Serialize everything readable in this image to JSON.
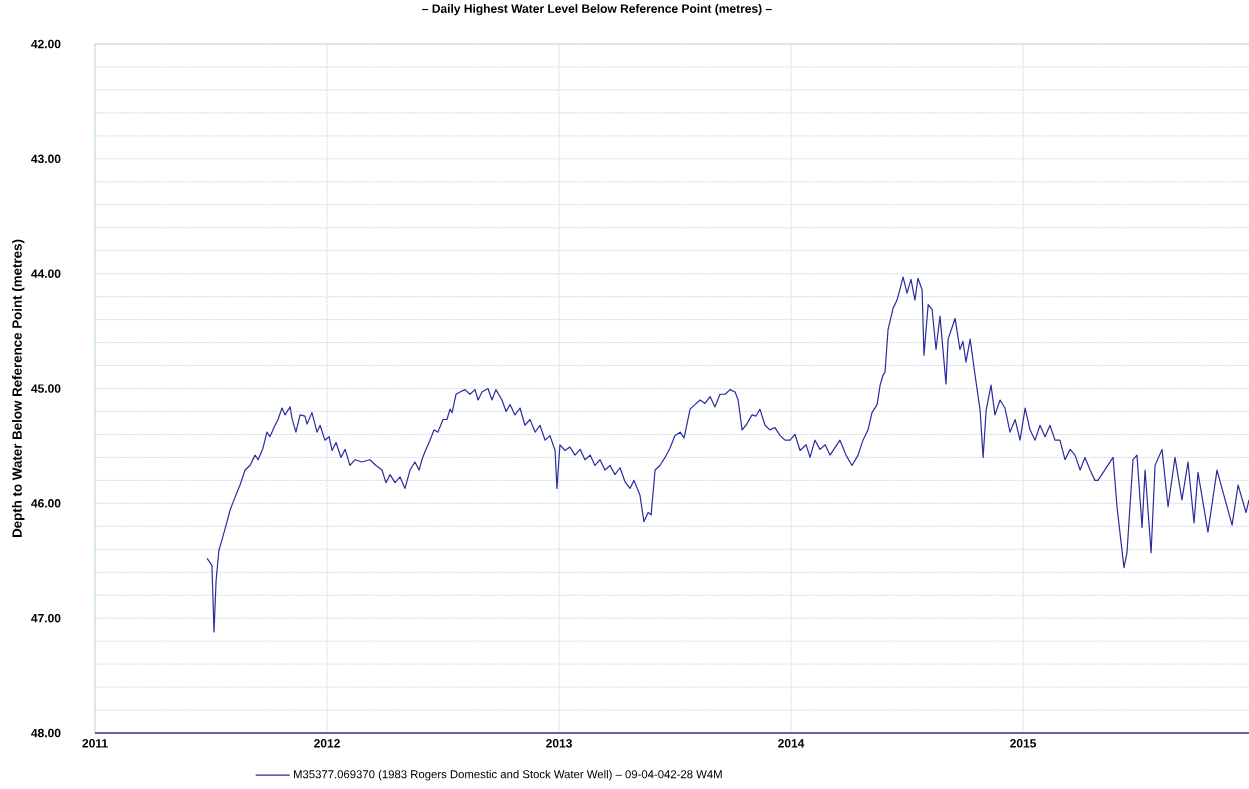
{
  "chart_data": {
    "type": "line",
    "title": "– Daily Highest Water Level Below Reference Point (metres) –",
    "ylabel": "Depth to Water Below Reference Point (metres)",
    "xlim": [
      2011,
      2015.974
    ],
    "xticks": [
      2011,
      2012,
      2013,
      2014,
      2015
    ],
    "ylim": [
      48,
      42
    ],
    "yticks": [
      {
        "value": 42,
        "label": "42.00"
      },
      {
        "value": 42.2,
        "label": null
      },
      {
        "value": 42.4,
        "label": null
      },
      {
        "value": 42.6,
        "label": null
      },
      {
        "value": 42.8,
        "label": null
      },
      {
        "value": 43,
        "label": "43.00"
      },
      {
        "value": 43.2,
        "label": null
      },
      {
        "value": 43.4,
        "label": null
      },
      {
        "value": 43.6,
        "label": null
      },
      {
        "value": 43.8,
        "label": null
      },
      {
        "value": 44,
        "label": "44.00"
      },
      {
        "value": 44.2,
        "label": null
      },
      {
        "value": 44.4,
        "label": null
      },
      {
        "value": 44.6,
        "label": null
      },
      {
        "value": 44.8,
        "label": null
      },
      {
        "value": 45,
        "label": "45.00"
      },
      {
        "value": 45.2,
        "label": null
      },
      {
        "value": 45.4,
        "label": null
      },
      {
        "value": 45.6,
        "label": null
      },
      {
        "value": 45.8,
        "label": null
      },
      {
        "value": 46,
        "label": "46.00"
      },
      {
        "value": 46.2,
        "label": null
      },
      {
        "value": 46.4,
        "label": null
      },
      {
        "value": 46.6,
        "label": null
      },
      {
        "value": 46.8,
        "label": null
      },
      {
        "value": 47,
        "label": "47.00"
      },
      {
        "value": 47.2,
        "label": null
      },
      {
        "value": 47.4,
        "label": null
      },
      {
        "value": 47.6,
        "label": null
      },
      {
        "value": 47.8,
        "label": null
      },
      {
        "value": 48,
        "label": "48.00"
      }
    ],
    "grid": true,
    "legend": "bottom",
    "series": [
      {
        "name": "M35377.069370 (1983 Rogers Domestic and Stock Water Well)  – 09-04-042-28 W4M",
        "color": "#2b2b9c",
        "x": [
          2011.483,
          2011.504,
          2011.513,
          2011.522,
          2011.534,
          2011.547,
          2011.565,
          2011.582,
          2011.599,
          2011.625,
          2011.647,
          2011.668,
          2011.69,
          2011.703,
          2011.724,
          2011.741,
          2011.754,
          2011.776,
          2011.789,
          2011.806,
          2011.819,
          2011.841,
          2011.849,
          2011.866,
          2011.884,
          2011.905,
          2011.914,
          2011.935,
          2011.957,
          2011.97,
          2011.991,
          2012.009,
          2012.022,
          2012.039,
          2012.06,
          2012.078,
          2012.099,
          2012.121,
          2012.151,
          2012.185,
          2012.211,
          2012.237,
          2012.254,
          2012.272,
          2012.293,
          2012.315,
          2012.336,
          2012.358,
          2012.379,
          2012.397,
          2012.409,
          2012.422,
          2012.444,
          2012.461,
          2012.478,
          2012.5,
          2012.517,
          2012.53,
          2012.539,
          2012.556,
          2012.573,
          2012.595,
          2012.616,
          2012.638,
          2012.651,
          2012.668,
          2012.694,
          2012.711,
          2012.728,
          2012.754,
          2012.772,
          2012.789,
          2012.81,
          2012.832,
          2012.853,
          2012.875,
          2012.897,
          2012.918,
          2012.94,
          2012.961,
          2012.983,
          2012.991,
          2013.004,
          2013.026,
          2013.047,
          2013.069,
          2013.091,
          2013.112,
          2013.134,
          2013.155,
          2013.177,
          2013.198,
          2013.22,
          2013.241,
          2013.263,
          2013.284,
          2013.306,
          2013.323,
          2013.349,
          2013.366,
          2013.384,
          2013.397,
          2013.414,
          2013.435,
          2013.457,
          2013.478,
          2013.5,
          2013.522,
          2013.539,
          2013.565,
          2013.586,
          2013.608,
          2013.629,
          2013.651,
          2013.672,
          2013.694,
          2013.716,
          2013.737,
          2013.759,
          2013.772,
          2013.789,
          2013.806,
          2013.832,
          2013.849,
          2013.866,
          2013.888,
          2013.909,
          2013.931,
          2013.953,
          2013.974,
          2013.996,
          2014.017,
          2014.039,
          2014.065,
          2014.082,
          2014.103,
          2014.125,
          2014.147,
          2014.168,
          2014.211,
          2014.237,
          2014.263,
          2014.289,
          2014.31,
          2014.332,
          2014.349,
          2014.371,
          2014.384,
          2014.397,
          2014.405,
          2014.418,
          2014.44,
          2014.457,
          2014.474,
          2014.483,
          2014.5,
          2014.517,
          2014.534,
          2014.547,
          2014.565,
          2014.573,
          2014.591,
          2014.608,
          2014.625,
          2014.642,
          2014.668,
          2014.677,
          2014.707,
          2014.728,
          2014.741,
          2014.754,
          2014.772,
          2014.793,
          2014.815,
          2014.828,
          2014.841,
          2014.862,
          2014.879,
          2014.901,
          2014.922,
          2014.944,
          2014.966,
          2014.987,
          2015.009,
          2015.03,
          2015.052,
          2015.073,
          2015.095,
          2015.116,
          2015.138,
          2015.159,
          2015.181,
          2015.203,
          2015.224,
          2015.246,
          2015.267,
          2015.289,
          2015.31,
          2015.323,
          2015.388,
          2015.405,
          2015.435,
          2015.448,
          2015.474,
          2015.491,
          2015.513,
          2015.526,
          2015.552,
          2015.569,
          2015.599,
          2015.625,
          2015.655,
          2015.685,
          2015.711,
          2015.737,
          2015.754,
          2015.797,
          2015.836,
          2015.901,
          2015.927,
          2015.961,
          2015.974
        ],
        "values": [
          46.48,
          46.54,
          47.12,
          46.67,
          46.41,
          46.32,
          46.19,
          46.06,
          45.97,
          45.84,
          45.71,
          45.67,
          45.58,
          45.62,
          45.52,
          45.38,
          45.42,
          45.32,
          45.27,
          45.17,
          45.23,
          45.16,
          45.26,
          45.38,
          45.23,
          45.24,
          45.31,
          45.21,
          45.38,
          45.32,
          45.45,
          45.42,
          45.54,
          45.47,
          45.6,
          45.53,
          45.67,
          45.62,
          45.64,
          45.62,
          45.67,
          45.71,
          45.82,
          45.75,
          45.82,
          45.77,
          45.87,
          45.71,
          45.64,
          45.71,
          45.62,
          45.55,
          45.45,
          45.36,
          45.38,
          45.27,
          45.27,
          45.18,
          45.21,
          45.05,
          45.03,
          45.01,
          45.05,
          45.01,
          45.1,
          45.03,
          45.0,
          45.1,
          45.01,
          45.1,
          45.2,
          45.14,
          45.23,
          45.17,
          45.32,
          45.27,
          45.38,
          45.32,
          45.45,
          45.41,
          45.54,
          45.87,
          45.49,
          45.54,
          45.51,
          45.58,
          45.53,
          45.62,
          45.58,
          45.67,
          45.62,
          45.71,
          45.67,
          45.75,
          45.69,
          45.81,
          45.87,
          45.8,
          45.93,
          46.16,
          46.08,
          46.1,
          45.71,
          45.67,
          45.6,
          45.52,
          45.41,
          45.38,
          45.43,
          45.18,
          45.14,
          45.1,
          45.13,
          45.07,
          45.16,
          45.05,
          45.05,
          45.01,
          45.03,
          45.1,
          45.36,
          45.32,
          45.23,
          45.24,
          45.18,
          45.32,
          45.36,
          45.34,
          45.41,
          45.45,
          45.45,
          45.4,
          45.54,
          45.49,
          45.6,
          45.45,
          45.53,
          45.49,
          45.58,
          45.45,
          45.58,
          45.67,
          45.58,
          45.45,
          45.36,
          45.21,
          45.14,
          44.97,
          44.88,
          44.86,
          44.49,
          44.3,
          44.23,
          44.1,
          44.03,
          44.17,
          44.05,
          44.23,
          44.04,
          44.14,
          44.71,
          44.27,
          44.31,
          44.66,
          44.37,
          44.96,
          44.57,
          44.39,
          44.66,
          44.59,
          44.77,
          44.57,
          44.88,
          45.19,
          45.6,
          45.19,
          44.97,
          45.23,
          45.1,
          45.17,
          45.38,
          45.27,
          45.45,
          45.17,
          45.36,
          45.45,
          45.32,
          45.42,
          45.32,
          45.45,
          45.45,
          45.62,
          45.53,
          45.58,
          45.71,
          45.6,
          45.71,
          45.8,
          45.8,
          45.6,
          46.03,
          46.56,
          46.43,
          45.62,
          45.58,
          46.21,
          45.71,
          46.43,
          45.67,
          45.53,
          46.03,
          45.6,
          45.97,
          45.64,
          46.17,
          45.73,
          46.25,
          45.71,
          46.19,
          45.84,
          46.08,
          45.97
        ]
      }
    ]
  }
}
